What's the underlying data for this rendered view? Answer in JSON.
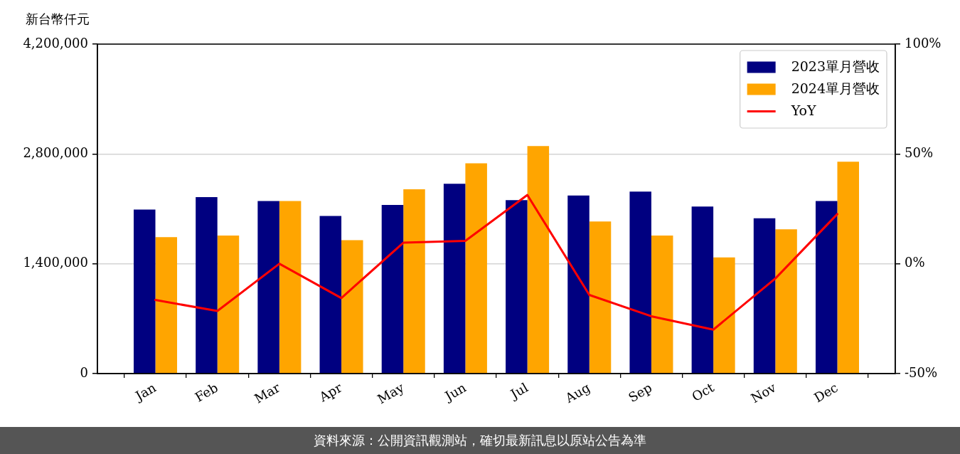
{
  "chart_data": {
    "type": "bar",
    "ylabel": "新台幣仟元",
    "categories": [
      "Jan",
      "Feb",
      "Mar",
      "Apr",
      "May",
      "Jun",
      "Jul",
      "Aug",
      "Sep",
      "Oct",
      "Nov",
      "Dec"
    ],
    "series": [
      {
        "name": "2023單月營收",
        "color": "#000080",
        "values": [
          2090000,
          2250000,
          2200000,
          2010000,
          2150000,
          2420000,
          2210000,
          2270000,
          2320000,
          2130000,
          1980000,
          2200000
        ]
      },
      {
        "name": "2024單月營收",
        "color": "#ffa500",
        "values": [
          1740000,
          1760000,
          2200000,
          1700000,
          2350000,
          2680000,
          2900000,
          1940000,
          1760000,
          1480000,
          1840000,
          2700000
        ]
      },
      {
        "name": "YoY",
        "type": "line",
        "axis": "y2",
        "color": "#ff0000",
        "values": [
          -16.5,
          -21.5,
          0,
          -15.6,
          9.6,
          10.4,
          31.3,
          -14.2,
          -23.9,
          -30,
          -6.7,
          22.6
        ]
      }
    ],
    "ylim": [
      0,
      4200000
    ],
    "yticks": [
      0,
      {
        "value": 1400000,
        "label": "1,400,000"
      },
      {
        "value": 2800000,
        "label": "2,800,000"
      },
      {
        "value": 4200000,
        "label": "4,200,000"
      }
    ],
    "y2lim": [
      -50,
      100
    ],
    "y2ticks": [
      {
        "value": -50,
        "label": "-50%"
      },
      {
        "value": 0,
        "label": "0%"
      },
      {
        "value": 50,
        "label": "50%"
      },
      {
        "value": 100,
        "label": "100%"
      }
    ],
    "grid": "y",
    "legend": "top right",
    "marker": "none",
    "annotations": [
      "資料來源：公開資訊觀測站，確切最新訊息以原站公告為準"
    ]
  }
}
